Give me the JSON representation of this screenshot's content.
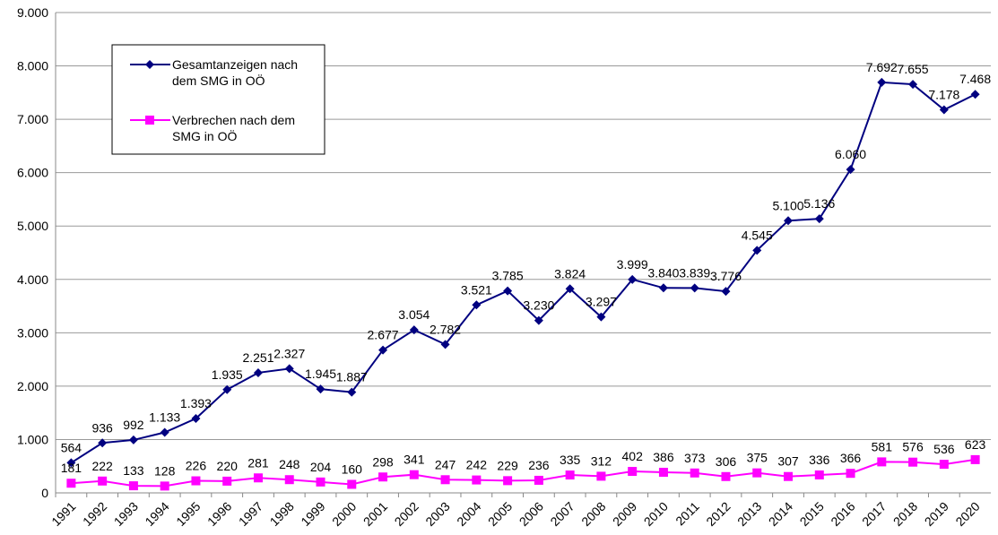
{
  "chart_data": {
    "type": "line",
    "categories": [
      "1991",
      "1992",
      "1993",
      "1994",
      "1995",
      "1996",
      "1997",
      "1998",
      "1999",
      "2000",
      "2001",
      "2002",
      "2003",
      "2004",
      "2005",
      "2006",
      "2007",
      "2008",
      "2009",
      "2010",
      "2011",
      "2012",
      "2013",
      "2014",
      "2015",
      "2016",
      "2017",
      "2018",
      "2019",
      "2020"
    ],
    "series": [
      {
        "name": "Gesamtanzeigen nach dem SMG in OÖ",
        "color": "#000080",
        "marker": "diamond",
        "values": [
          564,
          936,
          992,
          1133,
          1393,
          1935,
          2251,
          2327,
          1945,
          1887,
          2677,
          3054,
          2782,
          3521,
          3785,
          3230,
          3824,
          3297,
          3999,
          3840,
          3839,
          3776,
          4545,
          5100,
          5136,
          6060,
          7692,
          7655,
          7178,
          7468
        ],
        "value_labels": [
          "564",
          "936",
          "992",
          "1.133",
          "1.393",
          "1.935",
          "2.251",
          "2.327",
          "1.945",
          "1.887",
          "2.677",
          "3.054",
          "2.782",
          "3.521",
          "3.785",
          "3.230",
          "3.824",
          "3.297",
          "3.999",
          "3.840",
          "3.839",
          "3.776",
          "4.545",
          "5.100",
          "5.136",
          "6.060",
          "7.692",
          "7.655",
          "7.178",
          "7.468"
        ]
      },
      {
        "name": "Verbrechen nach dem SMG in OÖ",
        "color": "#FF00FF",
        "marker": "square",
        "values": [
          181,
          222,
          133,
          128,
          226,
          220,
          281,
          248,
          204,
          160,
          298,
          341,
          247,
          242,
          229,
          236,
          335,
          312,
          402,
          386,
          373,
          306,
          375,
          307,
          336,
          366,
          581,
          576,
          536,
          623
        ]
      }
    ],
    "ylim": [
      0,
      9000
    ],
    "yticks": [
      0,
      {
        "value": 1000,
        "label": "1.000"
      },
      {
        "value": 2000,
        "label": "2.000"
      },
      {
        "value": 3000,
        "label": "3.000"
      },
      {
        "value": 4000,
        "label": "4.000"
      },
      {
        "value": 5000,
        "label": "5.000"
      },
      {
        "value": 6000,
        "label": "6.000"
      },
      {
        "value": 7000,
        "label": "7.000"
      },
      {
        "value": 8000,
        "label": "8.000"
      },
      {
        "value": 9000,
        "label": "9.000"
      }
    ],
    "grid": true,
    "legend": "upper left"
  }
}
